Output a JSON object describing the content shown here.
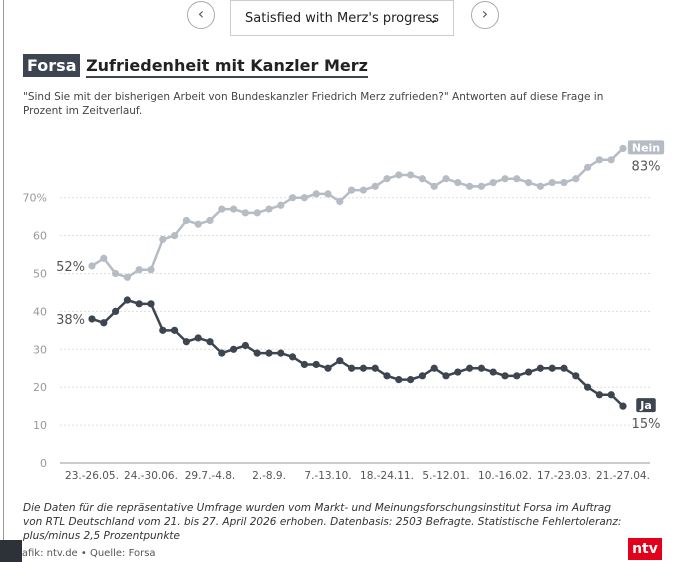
{
  "nav": {
    "dropdown": "Satisfied with Merz's progress"
  },
  "chart_data": {
    "type": "line",
    "badge": "Forsa",
    "title": "Zufriedenheit mit Kanzler Merz",
    "subtitle": "\"Sind Sie mit der bisherigen Arbeit von Bundeskanzler Friedrich Merz zufrieden?\" Antworten auf diese Frage in Prozent im Zeitverlauf.",
    "categories": [
      "23.-26.05.",
      null,
      null,
      null,
      null,
      "24.-30.06.",
      null,
      null,
      null,
      null,
      "29.7.-4.8.",
      null,
      null,
      null,
      null,
      "2.-8.9.",
      null,
      null,
      null,
      null,
      "7.-13.10.",
      null,
      null,
      null,
      null,
      "18.-24.11.",
      null,
      null,
      null,
      null,
      "5.-12.01.",
      null,
      null,
      null,
      null,
      "10.-16.02.",
      null,
      null,
      null,
      null,
      "17.-23.03.",
      null,
      null,
      null,
      null,
      "21.-27.04."
    ],
    "series": [
      {
        "name": "Nein",
        "color": "#b5bcc4",
        "start_label": "52%",
        "end_label": "83%",
        "values": [
          52,
          54,
          50,
          49,
          51,
          51,
          59,
          60,
          64,
          63,
          64,
          67,
          67,
          66,
          66,
          67,
          68,
          70,
          70,
          71,
          71,
          69,
          72,
          72,
          73,
          75,
          76,
          76,
          75,
          73,
          75,
          74,
          73,
          73,
          74,
          75,
          75,
          74,
          73,
          74,
          74,
          75,
          78,
          80,
          80,
          83
        ]
      },
      {
        "name": "Ja",
        "color": "#3d4550",
        "start_label": "38%",
        "end_label": "15%",
        "values": [
          38,
          37,
          40,
          43,
          42,
          42,
          35,
          35,
          32,
          33,
          32,
          29,
          30,
          31,
          29,
          29,
          29,
          28,
          26,
          26,
          25,
          27,
          25,
          25,
          25,
          23,
          22,
          22,
          23,
          25,
          23,
          24,
          25,
          25,
          24,
          23,
          23,
          24,
          25,
          25,
          25,
          23,
          20,
          18,
          18,
          15
        ]
      }
    ],
    "ylim": [
      0,
      85
    ],
    "yticks": [
      0,
      10,
      20,
      30,
      40,
      50,
      60,
      {
        "value": 70,
        "label": "70%"
      }
    ],
    "grid": true
  },
  "footer": {
    "note": "Die Daten für die repräsentative Umfrage wurden vom Markt- und Meinungsforschungsinstitut Forsa im Auftrag von RTL Deutschland vom 21. bis 27. April 2026 erhoben. Datenbasis: 2503 Befragte. Statistische Fehlertoleranz: plus/minus 2,5 Prozentpunkte",
    "credit": "Grafik: ntv.de • Quelle: Forsa",
    "logo": "ntv"
  }
}
